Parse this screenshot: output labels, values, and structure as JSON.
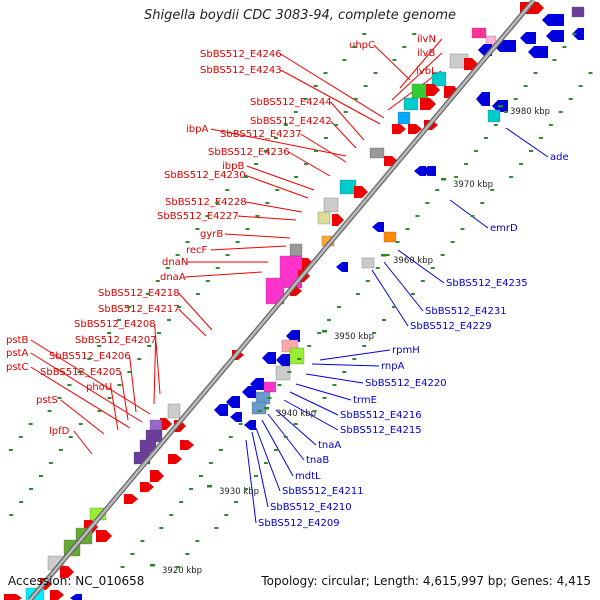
{
  "title": "Shigella boydii CDC 3083-94, complete genome",
  "footer": {
    "accession": "Accession: NC_010658",
    "summary": "Topology: circular; Length: 4,615,997 bp; Genes: 4,415"
  },
  "colors": {
    "forward": "#ee0000",
    "reverse": "#0000dd",
    "backbone": "#999999",
    "tick": "#228822"
  },
  "scale_labels": [
    "3920 kbp",
    "3930 kbp",
    "3940 kbp",
    "3950 kbp",
    "3960 kbp",
    "3970 kbp",
    "3980 kbp"
  ],
  "forward_labels": [
    "uhpC",
    "ilvN",
    "ilvB",
    "ivbL",
    "SbBS512_E4246",
    "SbBS512_E4243",
    "SbBS512_E4244",
    "SbBS512_E4242",
    "ibpA",
    "SbBS512_E4237",
    "SbBS512_E4236",
    "ibpB",
    "SbBS512_E4230",
    "SbBS512_E4228",
    "SbBS512_E4227",
    "gyrB",
    "recF",
    "dnaN",
    "dnaA",
    "SbBS512_E4218",
    "SbBS512_E4217",
    "SbBS512_E4208",
    "pstB",
    "SbBS512_E4207",
    "pstA",
    "SbBS512_E4206",
    "pstC",
    "SbBS512_E4205",
    "phoU",
    "pstS",
    "lpfD"
  ],
  "reverse_labels": [
    "ade",
    "emrD",
    "SbBS512_E4235",
    "SbBS512_E4231",
    "SbBS512_E4229",
    "rpmH",
    "rnpA",
    "SbBS512_E4220",
    "trmE",
    "SbBS512_E4216",
    "SbBS512_E4215",
    "tnaA",
    "tnaB",
    "mdtL",
    "SbBS512_E4211",
    "SbBS512_E4210",
    "SbBS512_E4209"
  ]
}
